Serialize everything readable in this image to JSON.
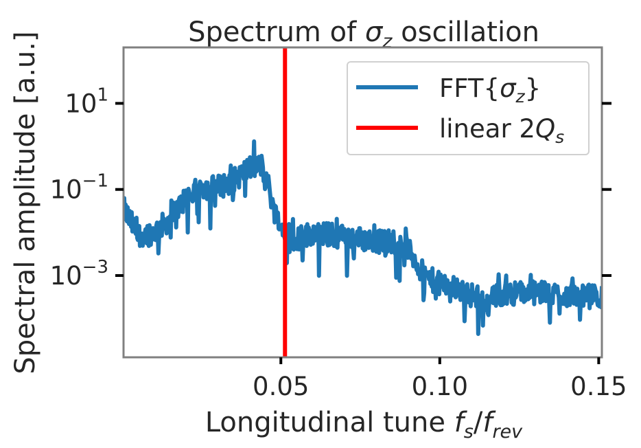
{
  "chart_data": {
    "type": "line",
    "title": "Spectrum of σ_z oscillation",
    "title_parts": {
      "pre": "Spectrum of ",
      "sym": "σ",
      "sub": "z",
      "post": " oscillation"
    },
    "xlabel": "Longitudinal tune f_s/f_rev",
    "xlabel_parts": {
      "pre": "Longitudinal tune ",
      "f1": "f",
      "s1": "s",
      "slash": "/",
      "f2": "f",
      "s2": "rev"
    },
    "ylabel": "Spectral amplitude [a.u.]",
    "xlim": [
      0.0005,
      0.151
    ],
    "ylim_log10": [
      -4.9,
      2.3
    ],
    "yscale": "log",
    "grid": false,
    "legend_position": "top-right",
    "x_ticks": [
      {
        "value": 0.05,
        "label": "0.05"
      },
      {
        "value": 0.1,
        "label": "0.10"
      },
      {
        "value": 0.15,
        "label": "0.15"
      }
    ],
    "y_ticks": [
      {
        "exp": 1,
        "base": "10",
        "sup": "1"
      },
      {
        "exp": -1,
        "base": "10",
        "sup": "−1"
      },
      {
        "exp": -3,
        "base": "10",
        "sup": "−3"
      }
    ],
    "series": [
      {
        "name": "FFT{σ_z}",
        "legend_parts": {
          "pre": "FFT{",
          "sym": "σ",
          "sub": "z",
          "post": "}"
        },
        "color": "#1f77b4",
        "envelope": {
          "x": [
            0.0005,
            0.005,
            0.01,
            0.015,
            0.02,
            0.025,
            0.03,
            0.035,
            0.04,
            0.044,
            0.046,
            0.048,
            0.05,
            0.055,
            0.06,
            0.07,
            0.08,
            0.088,
            0.092,
            0.095,
            0.1,
            0.105,
            0.11,
            0.115,
            0.12,
            0.13,
            0.14,
            0.151
          ],
          "log10_y": [
            -1.45,
            -2.05,
            -2.0,
            -1.7,
            -1.2,
            -0.95,
            -0.95,
            -0.8,
            -0.5,
            -0.45,
            -0.9,
            -1.5,
            -1.9,
            -2.15,
            -2.0,
            -2.1,
            -2.2,
            -2.2,
            -2.6,
            -3.0,
            -3.2,
            -3.3,
            -3.45,
            -3.6,
            -3.4,
            -3.4,
            -3.45,
            -3.5
          ]
        },
        "noise_amplitude_log10": 0.28
      },
      {
        "name": "linear 2Q_s",
        "legend_parts": {
          "pre": "linear 2",
          "sym": "Q",
          "sub": "s"
        },
        "color": "#ff0000",
        "x": 0.0513
      }
    ]
  }
}
